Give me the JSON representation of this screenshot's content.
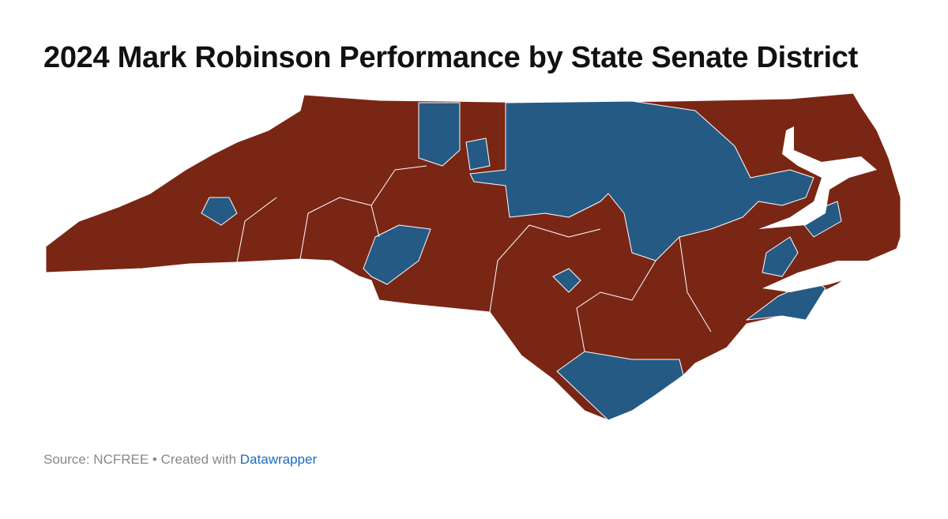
{
  "header": {
    "title": "2024 Mark Robinson Performance by State Senate District"
  },
  "footer": {
    "source": "Source: NCFREE • Created with",
    "link": "Datawrapper"
  }
}
